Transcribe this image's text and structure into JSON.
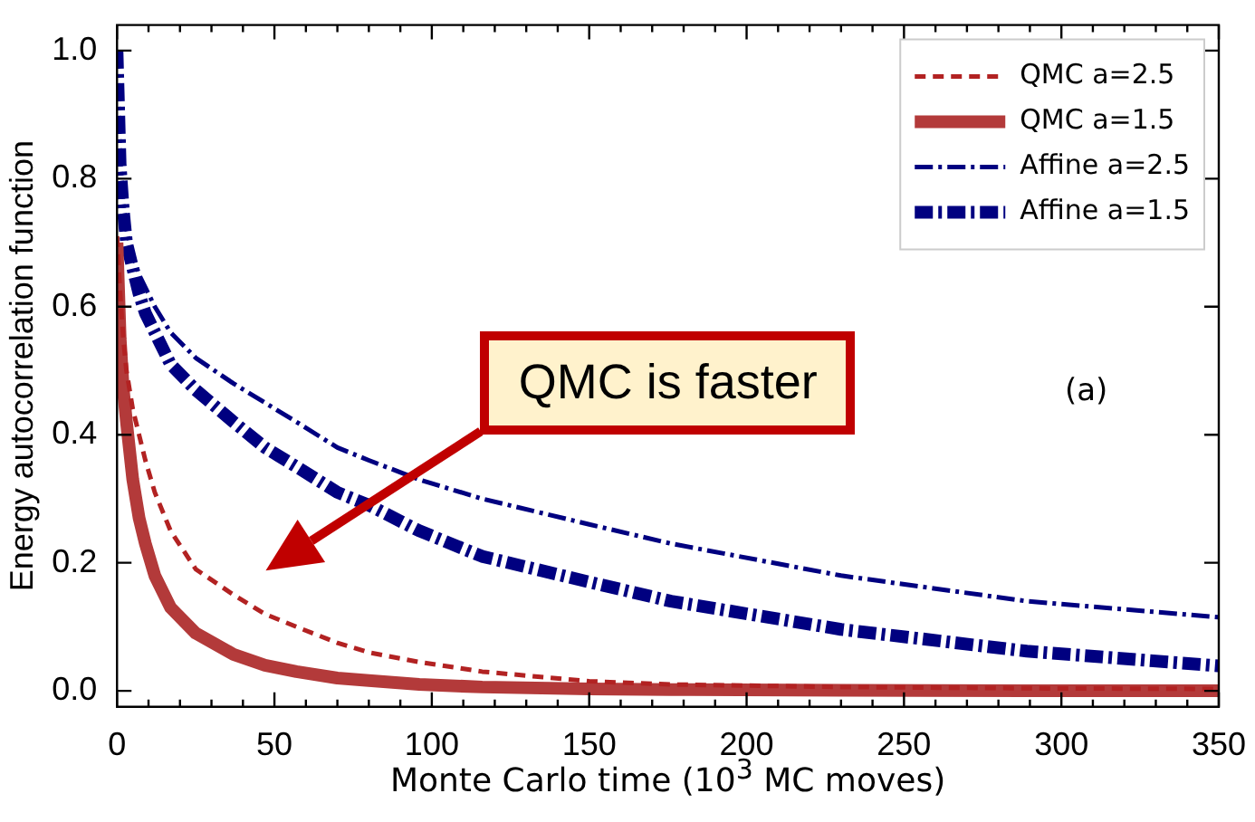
{
  "chart_data": {
    "type": "line",
    "xlabel": "Monte Carlo time (10$^{3}$ MC moves)",
    "ylabel": "Energy autocorrelation function",
    "xlim": [
      0,
      350
    ],
    "ylim": [
      -0.025,
      1.04
    ],
    "xticks": [
      0,
      {
        "value": 10,
        "label": null
      },
      {
        "value": 20,
        "label": null
      },
      {
        "value": 30,
        "label": null
      },
      {
        "value": 40,
        "label": null
      },
      50,
      {
        "value": 60,
        "label": null
      },
      {
        "value": 70,
        "label": null
      },
      {
        "value": 80,
        "label": null
      },
      {
        "value": 90,
        "label": null
      },
      100,
      {
        "value": 110,
        "label": null
      },
      {
        "value": 120,
        "label": null
      },
      {
        "value": 130,
        "label": null
      },
      {
        "value": 140,
        "label": null
      },
      150,
      {
        "value": 160,
        "label": null
      },
      {
        "value": 170,
        "label": null
      },
      {
        "value": 180,
        "label": null
      },
      {
        "value": 190,
        "label": null
      },
      200,
      {
        "value": 210,
        "label": null
      },
      {
        "value": 220,
        "label": null
      },
      {
        "value": 230,
        "label": null
      },
      {
        "value": 240,
        "label": null
      },
      250,
      {
        "value": 260,
        "label": null
      },
      {
        "value": 270,
        "label": null
      },
      {
        "value": 280,
        "label": null
      },
      {
        "value": 290,
        "label": null
      },
      300,
      {
        "value": 310,
        "label": null
      },
      {
        "value": 320,
        "label": null
      },
      {
        "value": 330,
        "label": null
      },
      {
        "value": 340,
        "label": null
      },
      350
    ],
    "yticks": [
      {
        "value": 0,
        "label": "0.0"
      },
      0.2,
      0.4,
      0.6,
      0.8,
      {
        "value": 1,
        "label": "1.0"
      }
    ],
    "grid": false,
    "legend": "top right",
    "marker": "none",
    "x": [
      0,
      1,
      2,
      3,
      5,
      7,
      9,
      12,
      17,
      25,
      37,
      47,
      57,
      70,
      80,
      96,
      116,
      150,
      176,
      230,
      289,
      350
    ],
    "series": [
      {
        "name": "QMC a=2.5",
        "color": "#b22222",
        "line_style": "dashed",
        "values": [
          0.71,
          0.62,
          0.55,
          0.5,
          0.44,
          0.4,
          0.36,
          0.31,
          0.25,
          0.19,
          0.15,
          0.12,
          0.1,
          0.075,
          0.06,
          0.045,
          0.03,
          0.015,
          0.01,
          0.006,
          0.004,
          0.003
        ]
      },
      {
        "name": "QMC a=1.5",
        "color": "#b33a3a",
        "line_style": "solid",
        "values": [
          0.7,
          0.55,
          0.47,
          0.42,
          0.33,
          0.27,
          0.23,
          0.18,
          0.13,
          0.09,
          0.057,
          0.04,
          0.03,
          0.02,
          0.016,
          0.01,
          0.006,
          0.003,
          0.002,
          0.001,
          0.0,
          0.0
        ]
      },
      {
        "name": "Affine a=2.5",
        "color": "#000080",
        "line_style": "dashdot",
        "values": [
          1.0,
          0.83,
          0.76,
          0.72,
          0.68,
          0.65,
          0.63,
          0.6,
          0.56,
          0.52,
          0.48,
          0.45,
          0.42,
          0.38,
          0.36,
          0.33,
          0.3,
          0.26,
          0.23,
          0.18,
          0.14,
          0.115
        ]
      },
      {
        "name": "Affine a=1.5",
        "color": "#000080",
        "line_style": "dashdot",
        "values": [
          1.0,
          0.82,
          0.75,
          0.7,
          0.66,
          0.62,
          0.59,
          0.56,
          0.51,
          0.47,
          0.42,
          0.38,
          0.35,
          0.31,
          0.29,
          0.25,
          0.21,
          0.17,
          0.14,
          0.096,
          0.062,
          0.039
        ]
      }
    ],
    "annotations": [
      "QMC is faster",
      "(a)"
    ]
  }
}
